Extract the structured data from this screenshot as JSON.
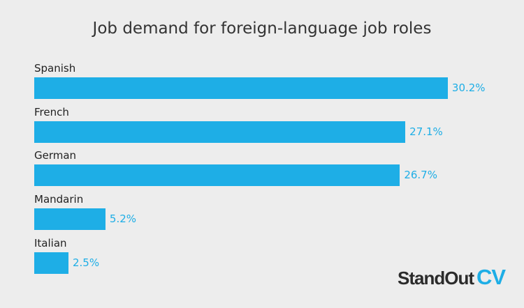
{
  "chart_data": {
    "type": "bar",
    "orientation": "horizontal",
    "title": "Job demand for foreign-language job roles",
    "categories": [
      "Spanish",
      "French",
      "German",
      "Mandarin",
      "Italian"
    ],
    "values": [
      30.2,
      27.1,
      26.7,
      5.2,
      2.5
    ],
    "value_labels": [
      "30.2%",
      "27.1%",
      "26.7%",
      "5.2%",
      "2.5%"
    ],
    "unit": "%",
    "grid": false,
    "bar_color": "#1eaee6",
    "label_color": "#1eaee6"
  },
  "logo": {
    "part1": "StandOut",
    "part2": "CV",
    "accent": "#1eaee6"
  }
}
